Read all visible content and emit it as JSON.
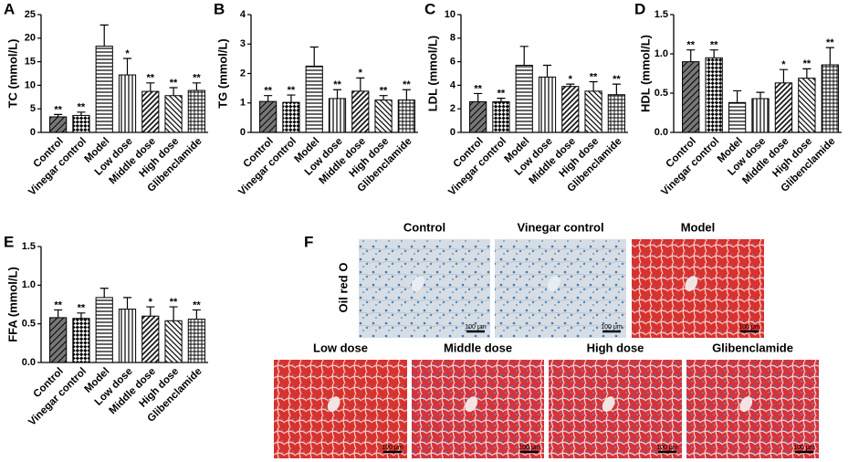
{
  "chart_data": [
    {
      "type": "bar",
      "panel": "A",
      "ylabel": "TC (mmol/L)",
      "color": "#000000",
      "categories": [
        "Control",
        "Vinegar control",
        "Model",
        "Low dose",
        "Middle dose",
        "High dose",
        "Glibenclamide"
      ],
      "values": [
        3.3,
        3.6,
        18.3,
        12.2,
        8.7,
        7.8,
        8.9
      ],
      "errors": [
        0.5,
        0.7,
        4.5,
        3.5,
        1.8,
        1.7,
        1.6
      ],
      "annotations": [
        "**",
        "**",
        null,
        "*",
        "**",
        "**",
        "**"
      ],
      "ylim": [
        0,
        25
      ],
      "yticks": [
        0,
        5,
        10,
        15,
        20,
        25
      ]
    },
    {
      "type": "bar",
      "panel": "B",
      "ylabel": "TG (mmol/L)",
      "color": "#000000",
      "categories": [
        "Control",
        "Vinegar control",
        "Model",
        "Low dose",
        "Middle dose",
        "High dose",
        "Glibenclamide"
      ],
      "values": [
        1.05,
        1.02,
        2.25,
        1.15,
        1.4,
        1.1,
        1.1
      ],
      "errors": [
        0.2,
        0.25,
        0.65,
        0.3,
        0.45,
        0.15,
        0.35
      ],
      "annotations": [
        "**",
        "**",
        null,
        "**",
        "*",
        "**",
        "**"
      ],
      "ylim": [
        0,
        4
      ],
      "yticks": [
        0,
        1,
        2,
        3,
        4
      ]
    },
    {
      "type": "bar",
      "panel": "C",
      "ylabel": "LDL (mmol/L)",
      "color": "#000000",
      "categories": [
        "Control",
        "Vinegar control",
        "Model",
        "Low dose",
        "Middle dose",
        "High dose",
        "Glibenclamide"
      ],
      "values": [
        2.6,
        2.6,
        5.7,
        4.7,
        3.9,
        3.5,
        3.2
      ],
      "errors": [
        0.7,
        0.3,
        1.6,
        1.0,
        0.2,
        0.8,
        0.9
      ],
      "annotations": [
        "**",
        "**",
        null,
        null,
        "*",
        "**",
        "**"
      ],
      "ylim": [
        0,
        10
      ],
      "yticks": [
        0,
        2,
        4,
        6,
        8,
        10
      ]
    },
    {
      "type": "bar",
      "panel": "D",
      "ylabel": "HDL (mmol/L)",
      "color": "#000000",
      "categories": [
        "Control",
        "Vinegar control",
        "Model",
        "Low dose",
        "Middle dose",
        "High dose",
        "Glibenclamide"
      ],
      "values": [
        0.9,
        0.95,
        0.38,
        0.43,
        0.63,
        0.69,
        0.86
      ],
      "errors": [
        0.15,
        0.1,
        0.15,
        0.08,
        0.17,
        0.12,
        0.22
      ],
      "annotations": [
        "**",
        "**",
        null,
        null,
        "*",
        "**",
        "**"
      ],
      "ylim": [
        0,
        1.5
      ],
      "yticks": [
        {
          "value": 0,
          "label": "0.0"
        },
        0.5,
        {
          "value": 1,
          "label": "1.0"
        },
        1.5
      ]
    },
    {
      "type": "bar",
      "panel": "E",
      "ylabel": "FFA (mmol/L)",
      "color": "#000000",
      "categories": [
        "Control",
        "Vinegar control",
        "Model",
        "Low dose",
        "Middle dose",
        "High dose",
        "Glibenclamide"
      ],
      "values": [
        0.58,
        0.57,
        0.84,
        0.69,
        0.6,
        0.54,
        0.56
      ],
      "errors": [
        0.1,
        0.07,
        0.12,
        0.15,
        0.12,
        0.18,
        0.12
      ],
      "annotations": [
        "**",
        "**",
        null,
        null,
        "*",
        "**",
        "**"
      ],
      "ylim": [
        0,
        1.5
      ],
      "yticks": [
        {
          "value": 0,
          "label": "0.0"
        },
        0.5,
        {
          "value": 1,
          "label": "1.0"
        },
        1.5
      ]
    }
  ],
  "panel_f": {
    "panel": "F",
    "row_label": "Oil red O",
    "images": [
      {
        "title": "Control",
        "scale": "100 μm"
      },
      {
        "title": "Vinegar control",
        "scale": "100 μm"
      },
      {
        "title": "Model",
        "scale": "100 μm"
      },
      {
        "title": "Low dose",
        "scale": "100 μm"
      },
      {
        "title": "Middle dose",
        "scale": "100 μm"
      },
      {
        "title": "High dose",
        "scale": "100 μm"
      },
      {
        "title": "Glibenclamide",
        "scale": "100 μm"
      }
    ]
  }
}
